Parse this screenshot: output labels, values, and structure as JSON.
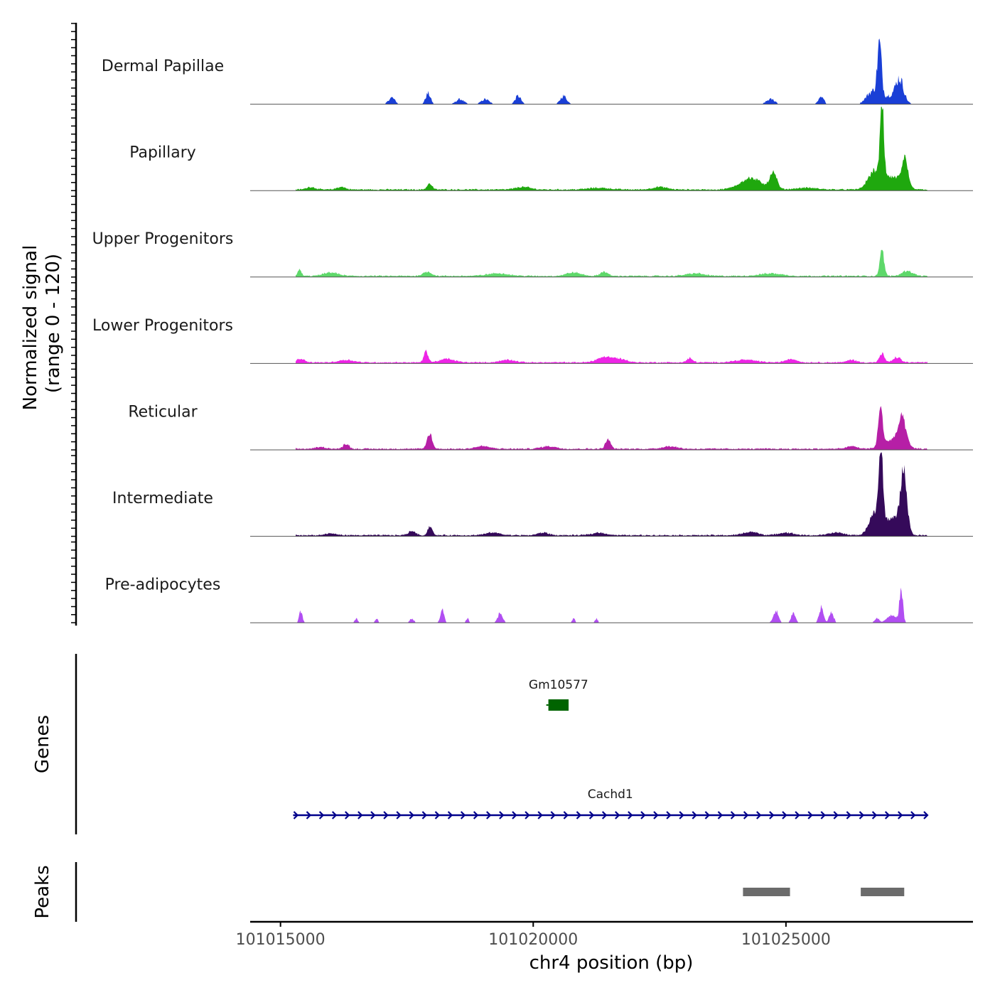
{
  "chart_data": {
    "type": "area",
    "title": "",
    "chromosome": "chr4",
    "xlabel": "chr4 position (bp)",
    "ylabel_line1": "Normalized signal",
    "ylabel_line2": "(range 0 - 120)",
    "y_range": [
      0,
      120
    ],
    "x_range": [
      101014400,
      101028700
    ],
    "x_ticks": [
      101015000,
      101020000,
      101025000
    ],
    "x_tick_labels": [
      "101015000",
      "101020000",
      "101025000"
    ],
    "signal_domain": [
      101015300,
      101027800
    ],
    "tracks": [
      {
        "name": "Dermal Papillae",
        "color": "#1a3fd6",
        "sparse": true,
        "peaks": [
          [
            101017200,
            0.08,
            90
          ],
          [
            101017920,
            0.13,
            70
          ],
          [
            101018550,
            0.06,
            110
          ],
          [
            101019050,
            0.06,
            110
          ],
          [
            101019700,
            0.1,
            80
          ],
          [
            101020600,
            0.1,
            90
          ],
          [
            101024700,
            0.06,
            120
          ],
          [
            101025700,
            0.08,
            80
          ],
          [
            101026850,
            0.62,
            60
          ],
          [
            101026700,
            0.14,
            160
          ],
          [
            101027250,
            0.26,
            110
          ],
          [
            101027050,
            0.1,
            260
          ]
        ]
      },
      {
        "name": "Papillary",
        "color": "#1fa80e",
        "sparse": false,
        "peaks": [
          [
            101015600,
            0.03,
            120
          ],
          [
            101016200,
            0.03,
            120
          ],
          [
            101017950,
            0.07,
            70
          ],
          [
            101019800,
            0.03,
            200
          ],
          [
            101021300,
            0.02,
            300
          ],
          [
            101022500,
            0.03,
            200
          ],
          [
            101024300,
            0.13,
            300
          ],
          [
            101024750,
            0.18,
            100
          ],
          [
            101026900,
            0.85,
            50
          ],
          [
            101026750,
            0.2,
            180
          ],
          [
            101027350,
            0.31,
            90
          ],
          [
            101027100,
            0.14,
            250
          ],
          [
            101025400,
            0.02,
            300
          ]
        ]
      },
      {
        "name": "Upper Progenitors",
        "color": "#5ed86a",
        "sparse": false,
        "peaks": [
          [
            101015380,
            0.07,
            50
          ],
          [
            101016000,
            0.04,
            200
          ],
          [
            101017900,
            0.05,
            120
          ],
          [
            101019300,
            0.03,
            300
          ],
          [
            101020800,
            0.04,
            200
          ],
          [
            101021400,
            0.05,
            100
          ],
          [
            101023200,
            0.03,
            250
          ],
          [
            101024700,
            0.03,
            300
          ],
          [
            101026900,
            0.29,
            60
          ],
          [
            101027400,
            0.06,
            150
          ]
        ]
      },
      {
        "name": "Lower Progenitors",
        "color": "#ee24e6",
        "sparse": false,
        "peaks": [
          [
            101015400,
            0.04,
            100
          ],
          [
            101016300,
            0.03,
            200
          ],
          [
            101017880,
            0.13,
            60
          ],
          [
            101018300,
            0.04,
            200
          ],
          [
            101019500,
            0.03,
            200
          ],
          [
            101021400,
            0.06,
            200
          ],
          [
            101021700,
            0.04,
            200
          ],
          [
            101023100,
            0.05,
            80
          ],
          [
            101024200,
            0.03,
            300
          ],
          [
            101025100,
            0.04,
            150
          ],
          [
            101026900,
            0.1,
            70
          ],
          [
            101027200,
            0.06,
            100
          ],
          [
            101026300,
            0.03,
            120
          ]
        ]
      },
      {
        "name": "Reticular",
        "color": "#b61fa6",
        "sparse": false,
        "peaks": [
          [
            101015800,
            0.02,
            150
          ],
          [
            101016300,
            0.06,
            80
          ],
          [
            101017950,
            0.18,
            70
          ],
          [
            101019000,
            0.03,
            200
          ],
          [
            101020300,
            0.03,
            200
          ],
          [
            101021480,
            0.12,
            70
          ],
          [
            101022700,
            0.03,
            200
          ],
          [
            101026870,
            0.45,
            60
          ],
          [
            101027300,
            0.31,
            110
          ],
          [
            101027100,
            0.1,
            250
          ],
          [
            101026300,
            0.03,
            150
          ]
        ]
      },
      {
        "name": "Intermediate",
        "color": "#350a5a",
        "sparse": false,
        "peaks": [
          [
            101016000,
            0.02,
            150
          ],
          [
            101017960,
            0.11,
            60
          ],
          [
            101017600,
            0.05,
            100
          ],
          [
            101019200,
            0.03,
            200
          ],
          [
            101020200,
            0.03,
            150
          ],
          [
            101021300,
            0.03,
            200
          ],
          [
            101024300,
            0.04,
            200
          ],
          [
            101025000,
            0.03,
            200
          ],
          [
            101026000,
            0.03,
            200
          ],
          [
            101026880,
            0.92,
            55
          ],
          [
            101026750,
            0.25,
            150
          ],
          [
            101027330,
            0.7,
            90
          ],
          [
            101027100,
            0.2,
            220
          ]
        ]
      },
      {
        "name": "Pre-adipocytes",
        "color": "#b14ef2",
        "sparse": true,
        "peaks": [
          [
            101015400,
            0.15,
            45
          ],
          [
            101016500,
            0.05,
            40
          ],
          [
            101016900,
            0.05,
            40
          ],
          [
            101017600,
            0.05,
            60
          ],
          [
            101018200,
            0.18,
            50
          ],
          [
            101018700,
            0.05,
            40
          ],
          [
            101019350,
            0.12,
            70
          ],
          [
            101020800,
            0.05,
            40
          ],
          [
            101021250,
            0.05,
            40
          ],
          [
            101024800,
            0.14,
            70
          ],
          [
            101025150,
            0.12,
            60
          ],
          [
            101025700,
            0.18,
            60
          ],
          [
            101025900,
            0.14,
            60
          ],
          [
            101026800,
            0.06,
            60
          ],
          [
            101027280,
            0.35,
            50
          ],
          [
            101027100,
            0.1,
            130
          ]
        ]
      }
    ],
    "genes": [
      {
        "name": "Gm10577",
        "type": "exon",
        "start": 101020300,
        "end": 101020700,
        "color": "#006400"
      },
      {
        "name": "Cachd1",
        "type": "transcript",
        "strand": "+",
        "start": 101015250,
        "end": 101027800,
        "color": "#00008b"
      }
    ],
    "peak_regions": [
      {
        "start": 101024150,
        "end": 101025080
      },
      {
        "start": 101026480,
        "end": 101027340
      }
    ],
    "panel_labels": {
      "genes": "Genes",
      "peaks": "Peaks"
    },
    "colors": {
      "axis": "#000000",
      "baseline": "#555555",
      "peak_bar": "#6b6b6b",
      "label": "#1a1a1a",
      "tick_label": "#4d4d4d"
    }
  }
}
